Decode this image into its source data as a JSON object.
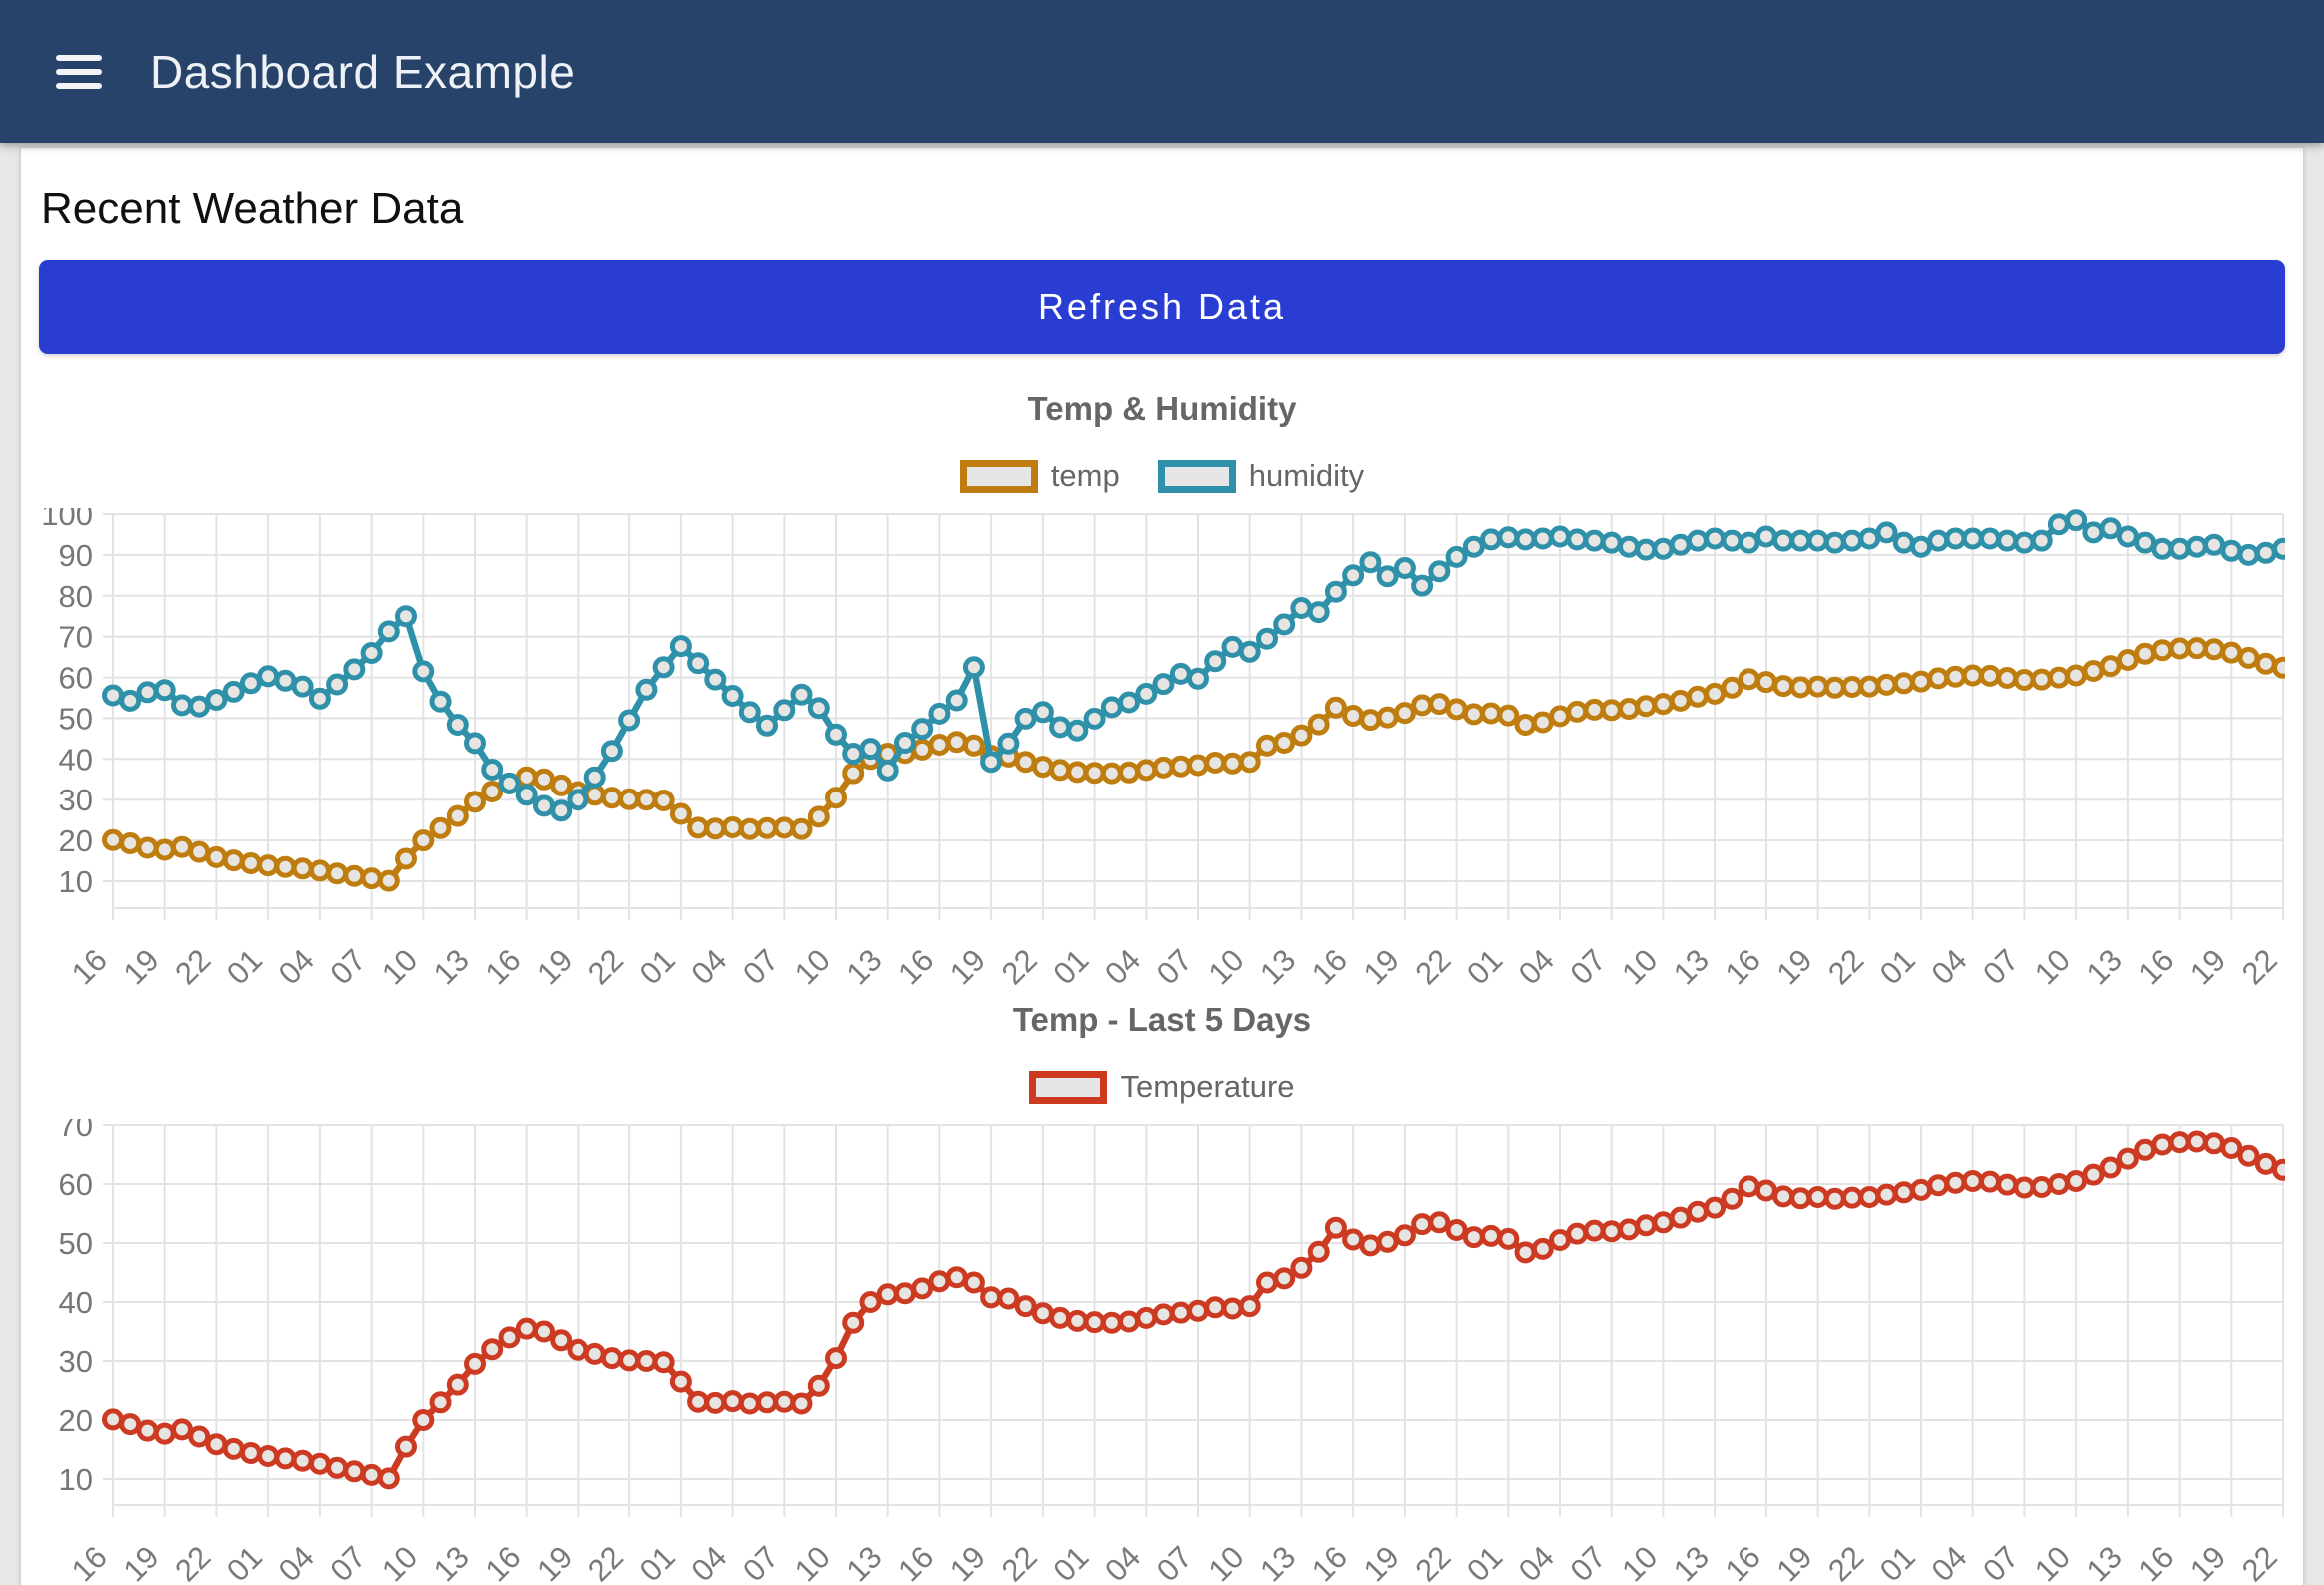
{
  "header": {
    "title": "Dashboard Example",
    "menu_icon": "hamburger-icon"
  },
  "main": {
    "heading": "Recent Weather Data",
    "refresh_label": "Refresh Data"
  },
  "colors": {
    "navbar": "#274369",
    "button": "#2a3dd2",
    "temp": "#bf7d0f",
    "humidity": "#2f90a9",
    "temperature_red": "#cd3a22",
    "point_fill": "#e7e5e2",
    "grid": "#e3e3e3",
    "axis_text": "#777777"
  },
  "chart_data": [
    {
      "type": "line",
      "title": "Temp & Humidity",
      "xlabel": "",
      "ylabel": "",
      "ylim": [
        10,
        100
      ],
      "ytick_step": 10,
      "grid": true,
      "legend_position": "top",
      "points_per_tick": 3,
      "tick_labels": [
        "16",
        "19",
        "22",
        "01",
        "04",
        "07",
        "10",
        "13",
        "16",
        "19",
        "22",
        "01",
        "04",
        "07",
        "10",
        "13",
        "16",
        "19",
        "22",
        "01",
        "04",
        "07",
        "10",
        "13",
        "16",
        "19",
        "22",
        "01",
        "04",
        "07",
        "10",
        "13",
        "16",
        "19",
        "22",
        "01",
        "04",
        "07",
        "10",
        "13",
        "16",
        "19",
        "22"
      ],
      "series": [
        {
          "name": "temp",
          "color": "#bf7d0f",
          "values": [
            20.1,
            19.3,
            18.2,
            17.7,
            18.4,
            17.2,
            15.9,
            15.1,
            14.4,
            13.9,
            13.5,
            13.1,
            12.6,
            11.9,
            11.3,
            10.7,
            10.1,
            15.5,
            20.0,
            23.0,
            26.0,
            29.5,
            32.0,
            34.0,
            35.5,
            35.0,
            33.5,
            31.9,
            31.2,
            30.5,
            30.1,
            30.0,
            29.8,
            26.5,
            23.1,
            22.9,
            23.2,
            22.8,
            23.0,
            23.1,
            22.8,
            25.8,
            30.5,
            36.5,
            40.0,
            41.3,
            41.5,
            42.3,
            43.5,
            44.2,
            43.3,
            40.8,
            40.6,
            39.3,
            38.1,
            37.3,
            36.8,
            36.6,
            36.5,
            36.7,
            37.3,
            37.9,
            38.2,
            38.5,
            39.1,
            38.9,
            39.3,
            43.3,
            44.0,
            45.8,
            48.5,
            52.6,
            50.6,
            49.6,
            50.2,
            51.3,
            53.2,
            53.5,
            52.2,
            51.0,
            51.2,
            50.7,
            48.4,
            49.0,
            50.5,
            51.6,
            52.1,
            52.0,
            52.3,
            53.0,
            53.5,
            54.3,
            55.3,
            56.0,
            57.5,
            59.6,
            58.9,
            57.9,
            57.6,
            57.8,
            57.5,
            57.7,
            57.8,
            58.2,
            58.6,
            59.0,
            59.8,
            60.2,
            60.5,
            60.4,
            59.9,
            59.4,
            59.5,
            60.0,
            60.5,
            61.6,
            62.8,
            64.3,
            65.8,
            66.7,
            67.1,
            67.2,
            66.9,
            66.1,
            64.8,
            63.4,
            62.4
          ]
        },
        {
          "name": "humidity",
          "color": "#2f90a9",
          "values": [
            55.6,
            54.3,
            56.4,
            56.9,
            53.2,
            52.9,
            54.5,
            56.5,
            58.6,
            60.3,
            59.2,
            57.8,
            54.8,
            58.3,
            62.0,
            66.0,
            71.3,
            75.0,
            61.5,
            54.1,
            48.4,
            43.9,
            37.4,
            34.0,
            31.2,
            28.5,
            27.3,
            30.0,
            35.5,
            42.0,
            49.5,
            57.0,
            62.5,
            67.7,
            63.5,
            59.5,
            55.5,
            51.5,
            48.2,
            52.0,
            55.8,
            52.5,
            46.0,
            41.3,
            42.5,
            37.2,
            44.0,
            47.4,
            51.1,
            54.4,
            62.5,
            39.3,
            43.8,
            49.9,
            51.5,
            47.8,
            47.0,
            49.9,
            52.7,
            53.9,
            56.0,
            58.4,
            60.9,
            59.7,
            64.0,
            67.5,
            66.3,
            69.5,
            73.0,
            77.0,
            76.0,
            81.0,
            85.0,
            88.2,
            84.8,
            86.8,
            82.5,
            86.0,
            89.5,
            92.0,
            93.8,
            94.3,
            93.8,
            94.0,
            94.5,
            93.8,
            93.5,
            93.0,
            92.0,
            91.3,
            91.5,
            92.5,
            93.5,
            94.0,
            93.5,
            93.0,
            94.5,
            93.5,
            93.5,
            93.5,
            93.0,
            93.5,
            94.0,
            95.5,
            93.0,
            92.0,
            93.5,
            94.0,
            94.0,
            94.0,
            93.5,
            93.0,
            93.5,
            97.5,
            98.5,
            95.5,
            96.5,
            94.5,
            93.0,
            91.5,
            91.5,
            92.0,
            92.5,
            91.0,
            90.0,
            90.5,
            91.5
          ]
        }
      ]
    },
    {
      "type": "line",
      "title": "Temp - Last 5 Days",
      "xlabel": "",
      "ylabel": "",
      "ylim": [
        10,
        70
      ],
      "ytick_step": 10,
      "grid": true,
      "legend_position": "top",
      "points_per_tick": 3,
      "tick_labels": [
        "16",
        "19",
        "22",
        "01",
        "04",
        "07",
        "10",
        "13",
        "16",
        "19",
        "22",
        "01",
        "04",
        "07",
        "10",
        "13",
        "16",
        "19",
        "22",
        "01",
        "04",
        "07",
        "10",
        "13",
        "16",
        "19",
        "22",
        "01",
        "04",
        "07",
        "10",
        "13",
        "16",
        "19",
        "22",
        "01",
        "04",
        "07",
        "10",
        "13",
        "16",
        "19",
        "22"
      ],
      "series": [
        {
          "name": "Temperature",
          "color": "#cd3a22",
          "values": [
            20.1,
            19.3,
            18.2,
            17.7,
            18.4,
            17.2,
            15.9,
            15.1,
            14.4,
            13.9,
            13.5,
            13.1,
            12.6,
            11.9,
            11.3,
            10.7,
            10.1,
            15.5,
            20.0,
            23.0,
            26.0,
            29.5,
            32.0,
            34.0,
            35.5,
            35.0,
            33.5,
            31.9,
            31.2,
            30.5,
            30.1,
            30.0,
            29.8,
            26.5,
            23.1,
            22.9,
            23.2,
            22.8,
            23.0,
            23.1,
            22.8,
            25.8,
            30.5,
            36.5,
            40.0,
            41.3,
            41.5,
            42.3,
            43.5,
            44.2,
            43.3,
            40.8,
            40.6,
            39.3,
            38.1,
            37.3,
            36.8,
            36.6,
            36.5,
            36.7,
            37.3,
            37.9,
            38.2,
            38.5,
            39.1,
            38.9,
            39.3,
            43.3,
            44.0,
            45.8,
            48.5,
            52.6,
            50.6,
            49.6,
            50.2,
            51.3,
            53.2,
            53.5,
            52.2,
            51.0,
            51.2,
            50.7,
            48.4,
            49.0,
            50.5,
            51.6,
            52.1,
            52.0,
            52.3,
            53.0,
            53.5,
            54.3,
            55.3,
            56.0,
            57.5,
            59.6,
            58.9,
            57.9,
            57.6,
            57.8,
            57.5,
            57.7,
            57.8,
            58.2,
            58.6,
            59.0,
            59.8,
            60.2,
            60.5,
            60.4,
            59.9,
            59.4,
            59.5,
            60.0,
            60.5,
            61.6,
            62.8,
            64.3,
            65.8,
            66.7,
            67.1,
            67.2,
            66.9,
            66.1,
            64.8,
            63.4,
            62.4
          ]
        }
      ]
    }
  ]
}
